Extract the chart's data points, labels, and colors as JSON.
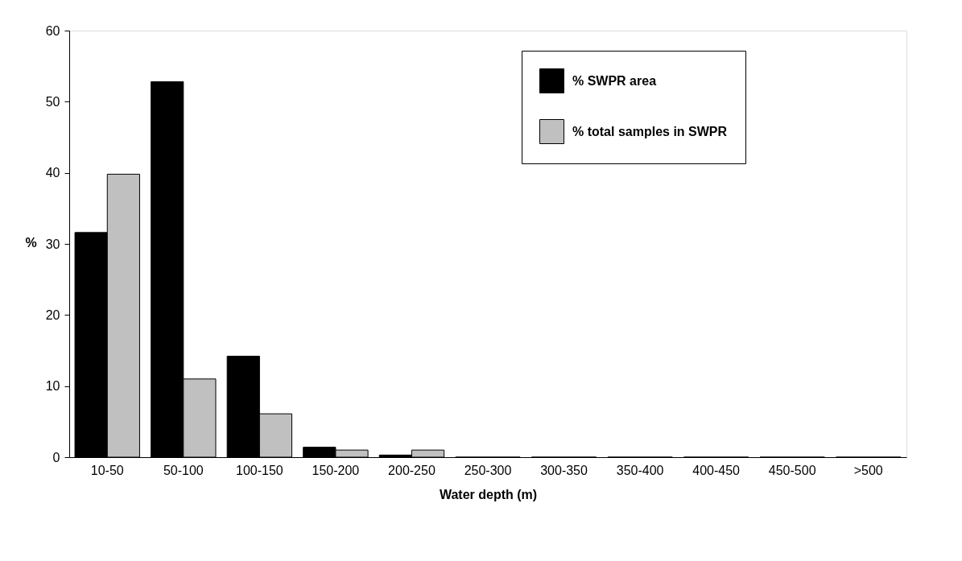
{
  "chart_data": {
    "type": "bar",
    "xlabel": "Water depth (m)",
    "ylabel": "%",
    "categories": [
      "10-50",
      "50-100",
      "100-150",
      "150-200",
      "200-250",
      "250-300",
      "300-350",
      "350-400",
      "400-450",
      "450-500",
      ">500"
    ],
    "series": [
      {
        "name": "% SWPR area",
        "color": "#000000",
        "values": [
          31.6,
          52.8,
          14.2,
          1.4,
          0.3,
          0,
          0,
          0,
          0,
          0,
          0
        ]
      },
      {
        "name": "% total samples in SWPR",
        "color": "#c0c0c0",
        "values": [
          39.8,
          11.0,
          6.1,
          1.0,
          1.0,
          0,
          0,
          0,
          0,
          0,
          0
        ]
      }
    ],
    "ylim": [
      0,
      60
    ],
    "yticks": [
      0,
      10,
      20,
      30,
      40,
      50,
      60
    ],
    "grid": false,
    "legend": "top right"
  }
}
